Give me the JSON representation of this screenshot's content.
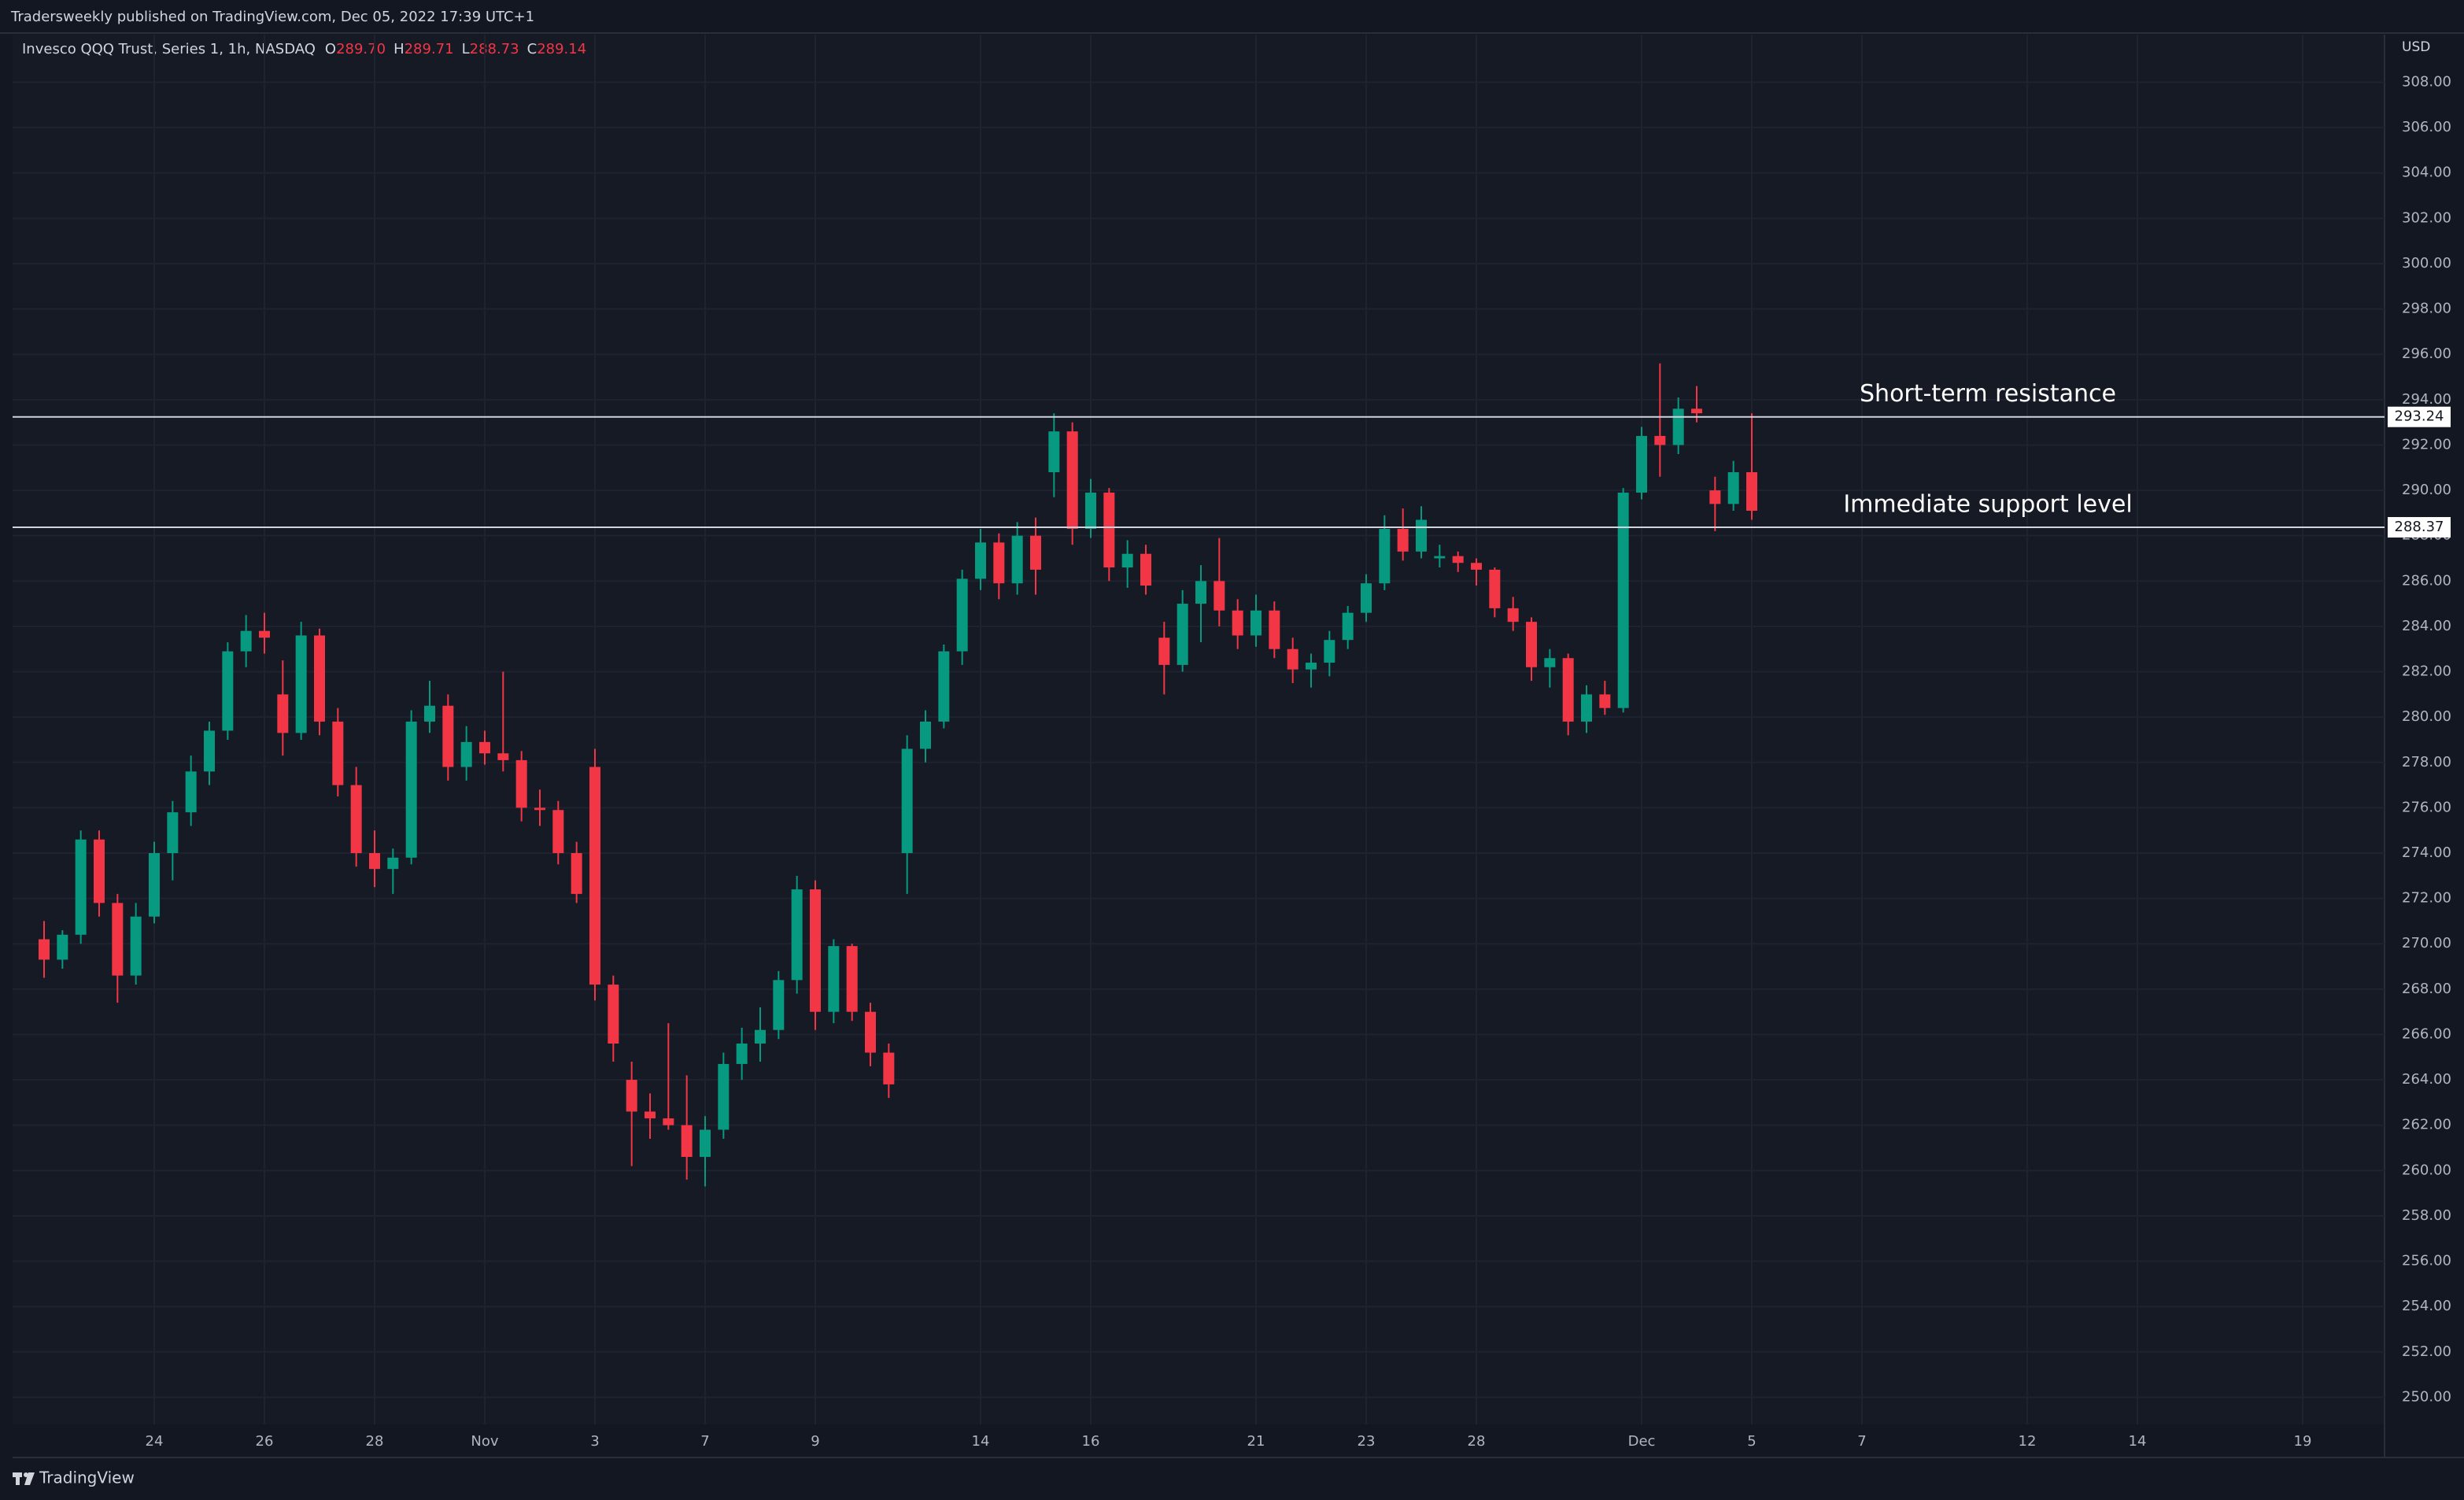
{
  "header": {
    "title": "Tradersweekly published on TradingView.com, Dec 05, 2022 17:39 UTC+1"
  },
  "footer": {
    "brand": "TradingView"
  },
  "chart_data": {
    "type": "candlestick",
    "symbol": "Invesco QQQ Trust, Series 1, 1h, NASDAQ",
    "last_bar": [
      {
        "key": "O",
        "value": "289.70"
      },
      {
        "key": "H",
        "value": "289.71"
      },
      {
        "key": "L",
        "value": "288.73"
      },
      {
        "key": "C",
        "value": "289.14"
      }
    ],
    "y_axis_label": "USD",
    "up_color": "#089981",
    "down_color": "#f23645",
    "grid": true,
    "ylim": [
      248.8,
      310.1
    ],
    "yticks": [
      {
        "value": 250,
        "label": "250.00"
      },
      {
        "value": 252,
        "label": "252.00"
      },
      {
        "value": 254,
        "label": "254.00"
      },
      {
        "value": 256,
        "label": "256.00"
      },
      {
        "value": 258,
        "label": "258.00"
      },
      {
        "value": 260,
        "label": "260.00"
      },
      {
        "value": 262,
        "label": "262.00"
      },
      {
        "value": 264,
        "label": "264.00"
      },
      {
        "value": 266,
        "label": "266.00"
      },
      {
        "value": 268,
        "label": "268.00"
      },
      {
        "value": 270,
        "label": "270.00"
      },
      {
        "value": 272,
        "label": "272.00"
      },
      {
        "value": 274,
        "label": "274.00"
      },
      {
        "value": 276,
        "label": "276.00"
      },
      {
        "value": 278,
        "label": "278.00"
      },
      {
        "value": 280,
        "label": "280.00"
      },
      {
        "value": 282,
        "label": "282.00"
      },
      {
        "value": 284,
        "label": "284.00"
      },
      {
        "value": 286,
        "label": "286.00"
      },
      {
        "value": 288,
        "label": "288.00"
      },
      {
        "value": 290,
        "label": "290.00"
      },
      {
        "value": 292,
        "label": "292.00"
      },
      {
        "value": 294,
        "label": "294.00"
      },
      {
        "value": 296,
        "label": "296.00"
      },
      {
        "value": 298,
        "label": "298.00"
      },
      {
        "value": 300,
        "label": "300.00"
      },
      {
        "value": 302,
        "label": "302.00"
      },
      {
        "value": 304,
        "label": "304.00"
      },
      {
        "value": 306,
        "label": "306.00"
      },
      {
        "value": 308,
        "label": "308.00"
      }
    ],
    "hlines": [
      293.24,
      288.37
    ],
    "annotations": [
      "Short-term resistance",
      "Immediate support level"
    ],
    "categories": [
      null,
      null,
      null,
      null,
      null,
      null,
      "24",
      null,
      null,
      null,
      null,
      null,
      "26",
      null,
      null,
      null,
      null,
      null,
      "28",
      null,
      null,
      null,
      null,
      null,
      "Nov",
      null,
      null,
      null,
      null,
      null,
      "3",
      null,
      null,
      null,
      null,
      null,
      "7",
      null,
      null,
      null,
      null,
      null,
      "9",
      null,
      null,
      null,
      null,
      null,
      null,
      null,
      null,
      "14",
      null,
      null,
      null,
      null,
      null,
      "16",
      null,
      null,
      null,
      null,
      null,
      null,
      null,
      null,
      "21",
      null,
      null,
      null,
      null,
      null,
      "23",
      null,
      null,
      null,
      null,
      null,
      "28",
      null,
      null,
      null,
      null,
      null,
      null,
      null,
      null,
      "Dec",
      null,
      null,
      null,
      null,
      null,
      "5",
      null,
      null,
      null,
      null,
      null,
      "7",
      null,
      null,
      null,
      null,
      null,
      null,
      null,
      null,
      "12",
      null,
      null,
      null,
      null,
      null,
      "14",
      null,
      null,
      null,
      null,
      null,
      null,
      null,
      null,
      "19",
      null,
      null,
      null,
      null,
      null
    ],
    "open": [
      270.2,
      269.3,
      270.4,
      274.6,
      271.8,
      268.6,
      271.2,
      274.0,
      275.8,
      277.6,
      279.4,
      282.9,
      283.8,
      281.0,
      279.3,
      283.6,
      279.8,
      277.0,
      274.0,
      273.3,
      273.8,
      279.8,
      280.5,
      277.8,
      278.9,
      278.4,
      278.1,
      276.0,
      275.9,
      274.0,
      277.8,
      268.2,
      264.0,
      262.6,
      262.3,
      262.0,
      260.6,
      261.8,
      264.7,
      265.6,
      266.2,
      268.4,
      272.4,
      267.0,
      269.9,
      267.0,
      265.2,
      274.0,
      278.6,
      279.8,
      282.9,
      286.1,
      287.7,
      285.9,
      288.0,
      290.8,
      292.6,
      288.3,
      289.9,
      286.6,
      287.2,
      283.5,
      282.3,
      285.0,
      286.0,
      284.7,
      283.6,
      284.7,
      283.0,
      282.1,
      282.4,
      283.4,
      284.6,
      285.9,
      288.3,
      287.3,
      287.0,
      287.1,
      286.8,
      286.5,
      284.8,
      284.2,
      282.2,
      282.6,
      279.8,
      281.0,
      280.4,
      289.9,
      292.4,
      292.0,
      293.6,
      290.0,
      289.4,
      290.8,
      null,
      null,
      null,
      null,
      null,
      null,
      null,
      null,
      null,
      null,
      null,
      null,
      null,
      null,
      null,
      null,
      null,
      null,
      null,
      null,
      null,
      null,
      null,
      null,
      null,
      null,
      null,
      null,
      null,
      null,
      null,
      null,
      null,
      null,
      null
    ],
    "high": [
      271.0,
      270.6,
      275.0,
      275.0,
      272.2,
      271.8,
      274.5,
      276.3,
      278.3,
      279.8,
      283.3,
      284.5,
      284.6,
      282.5,
      284.2,
      283.9,
      280.4,
      277.8,
      275.0,
      274.2,
      280.3,
      281.6,
      281.0,
      279.6,
      279.4,
      282.0,
      278.5,
      276.8,
      276.3,
      274.5,
      278.6,
      268.6,
      264.8,
      263.4,
      266.5,
      264.2,
      262.4,
      265.2,
      266.3,
      267.2,
      268.8,
      273.0,
      272.8,
      270.2,
      270.0,
      267.4,
      265.6,
      279.2,
      280.3,
      283.2,
      286.5,
      288.3,
      288.1,
      288.6,
      288.8,
      293.4,
      293.0,
      290.5,
      290.1,
      287.8,
      287.6,
      284.2,
      285.6,
      286.7,
      287.9,
      285.2,
      285.4,
      285.1,
      283.5,
      282.8,
      283.8,
      284.9,
      286.3,
      288.9,
      289.2,
      289.3,
      287.6,
      287.3,
      287.0,
      286.6,
      285.3,
      284.4,
      283.0,
      282.8,
      281.4,
      281.6,
      290.1,
      292.8,
      295.6,
      294.1,
      294.6,
      290.6,
      291.3,
      293.4,
      null,
      null,
      null,
      null,
      null,
      null,
      null,
      null,
      null,
      null,
      null,
      null,
      null,
      null,
      null,
      null,
      null,
      null,
      null,
      null,
      null,
      null,
      null,
      null,
      null,
      null,
      null,
      null,
      null,
      null,
      null,
      null,
      null,
      null,
      null
    ],
    "low": [
      268.5,
      268.9,
      270.0,
      271.2,
      267.4,
      268.2,
      270.9,
      272.8,
      275.2,
      277.0,
      279.0,
      282.2,
      282.8,
      278.3,
      279.0,
      279.2,
      276.5,
      273.4,
      272.5,
      272.2,
      273.5,
      279.3,
      277.2,
      277.2,
      277.9,
      277.6,
      275.4,
      275.2,
      273.5,
      271.8,
      267.5,
      264.8,
      260.2,
      261.4,
      261.8,
      259.6,
      259.3,
      261.4,
      264.0,
      264.8,
      265.8,
      267.8,
      266.2,
      266.5,
      266.6,
      264.6,
      263.2,
      272.2,
      278.0,
      279.5,
      282.3,
      285.6,
      285.2,
      285.4,
      285.4,
      289.7,
      287.6,
      287.9,
      286.0,
      285.7,
      285.4,
      281.0,
      282.0,
      283.3,
      284.0,
      283.0,
      283.1,
      282.6,
      281.5,
      281.3,
      281.8,
      283.0,
      284.2,
      285.6,
      286.9,
      287.0,
      286.6,
      286.4,
      285.8,
      284.4,
      283.8,
      281.6,
      281.3,
      279.2,
      279.3,
      280.1,
      280.2,
      289.6,
      290.6,
      291.6,
      293.0,
      288.2,
      289.1,
      288.7,
      null,
      null,
      null,
      null,
      null,
      null,
      null,
      null,
      null,
      null,
      null,
      null,
      null,
      null,
      null,
      null,
      null,
      null,
      null,
      null,
      null,
      null,
      null,
      null,
      null,
      null,
      null,
      null,
      null,
      null,
      null,
      null,
      null,
      null,
      null
    ],
    "close": [
      269.3,
      270.4,
      274.6,
      271.8,
      268.6,
      271.2,
      274.0,
      275.8,
      277.6,
      279.4,
      282.9,
      283.8,
      283.5,
      279.3,
      283.6,
      279.8,
      277.0,
      274.0,
      273.3,
      273.8,
      279.8,
      280.5,
      277.8,
      278.9,
      278.4,
      278.1,
      276.0,
      275.9,
      274.0,
      272.2,
      268.2,
      265.6,
      262.6,
      262.3,
      262.0,
      260.6,
      261.8,
      264.7,
      265.6,
      266.2,
      268.4,
      272.4,
      267.0,
      269.9,
      267.0,
      265.2,
      263.8,
      278.6,
      279.8,
      282.9,
      286.1,
      287.7,
      285.9,
      288.0,
      286.5,
      292.6,
      288.3,
      289.9,
      286.6,
      287.2,
      285.8,
      282.3,
      285.0,
      286.0,
      284.7,
      283.6,
      284.7,
      283.0,
      282.1,
      282.4,
      283.4,
      284.6,
      285.9,
      288.3,
      287.3,
      288.7,
      287.1,
      286.8,
      286.5,
      284.8,
      284.2,
      282.2,
      282.6,
      279.8,
      281.0,
      280.4,
      289.9,
      292.4,
      292.0,
      293.6,
      293.4,
      289.4,
      290.8,
      289.1,
      null,
      null,
      null,
      null,
      null,
      null,
      null,
      null,
      null,
      null,
      null,
      null,
      null,
      null,
      null,
      null,
      null,
      null,
      null,
      null,
      null,
      null,
      null,
      null,
      null,
      null,
      null,
      null,
      null,
      null,
      null,
      null,
      null,
      null,
      null
    ]
  }
}
